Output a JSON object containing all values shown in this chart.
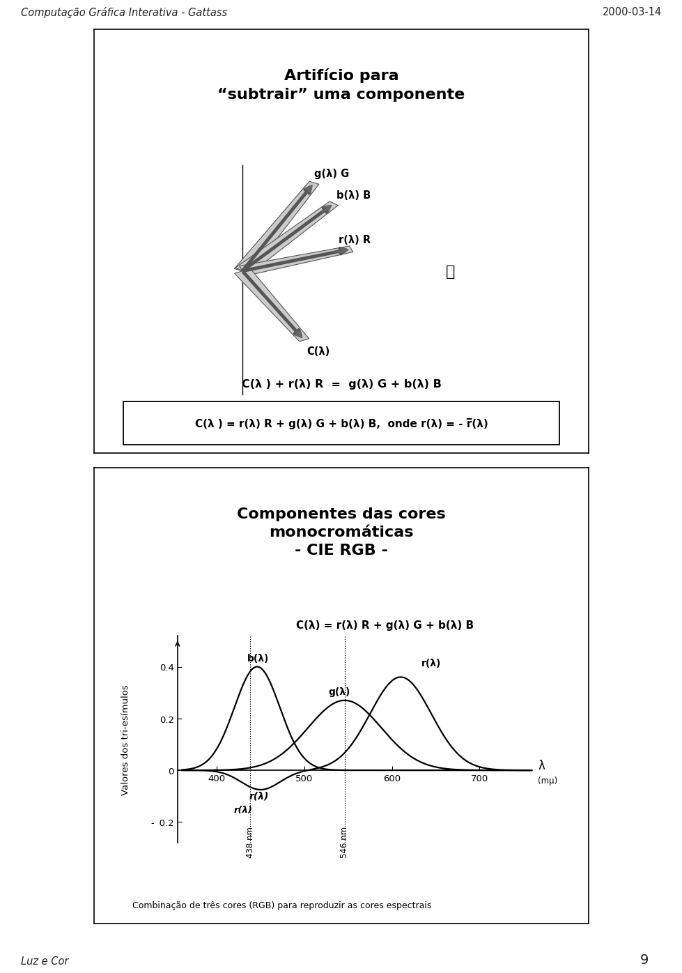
{
  "header_left": "Computação Gráfica Interativa - Gattass",
  "header_right": "2000-03-14",
  "footer_left": "Luz e Cor",
  "footer_page": "9",
  "slide1_title": "Artifício para\n“subtrair” uma componente",
  "slide1_eq1": "C(λ ) + r(λ) R  =  g(λ) G + b(λ) B",
  "slide1_eq2": "C(λ ) = r(λ) R + g(λ) G + b(λ) B,  onde r(λ) = - r(λ)",
  "slide2_title": "Componentes das cores\nmonocromáticas\n- CIE RGB -",
  "slide2_eq": "C(λ) = r(λ) R + g(λ) G + b(λ) B",
  "slide2_ylabel": "Valores dos tri-esímulos",
  "slide2_xunit": "(mμ)",
  "slide2_caption": "Combinação de três cores (RGB) para reproduzir as cores espectrais",
  "bg_color": "#ffffff",
  "text_color": "#000000",
  "sep_color_light": "#c8c8c8",
  "sep_color_dark": "#888888"
}
